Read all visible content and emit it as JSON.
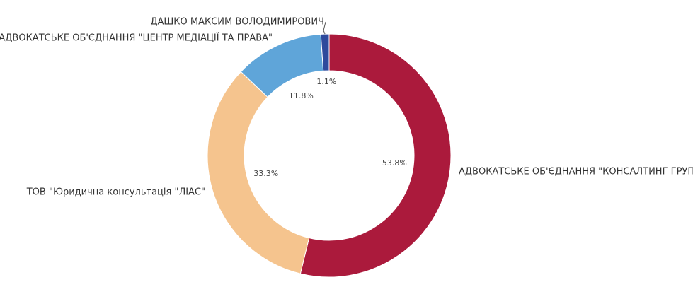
{
  "chart_data": {
    "type": "donut",
    "categories": [
      "АДВОКАТСЬКЕ ОБ'ЄДНАННЯ \"КОНСАЛТИНГ ГРУП",
      "ТОВ \"Юридична консультація \"ЛІАС\"",
      "АДВОКАТСЬКЕ ОБ'ЄДНАННЯ \"ЦЕНТР МЕДІАЦІЇ ТА ПРАВА\"",
      "ДАШКО МАКСИМ ВОЛОДИМИРОВИЧ"
    ],
    "values": [
      53.8,
      33.3,
      11.8,
      1.1
    ],
    "value_labels": [
      "53.8%",
      "33.3%",
      "11.8%",
      "1.1%"
    ],
    "colors": [
      "#ab1a3c",
      "#f5c48e",
      "#5fa5d9",
      "#2e4a9c"
    ]
  }
}
